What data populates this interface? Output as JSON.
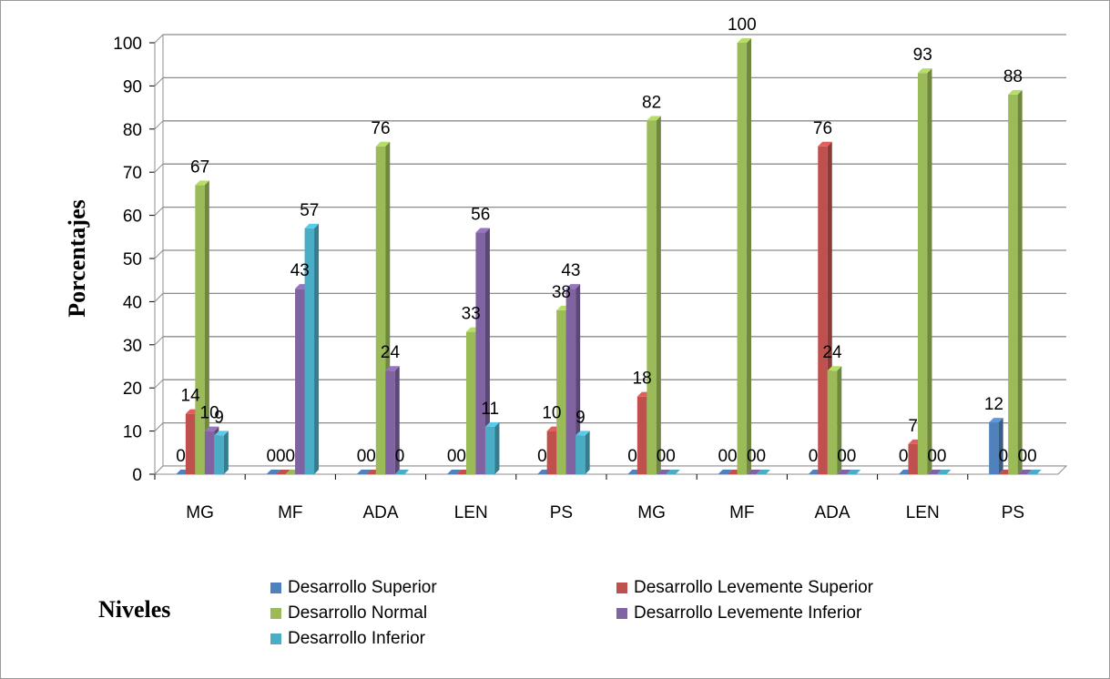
{
  "chart_data": {
    "type": "bar",
    "title": "",
    "xlabel": "Niveles",
    "ylabel": "Porcentajes",
    "ylim": [
      0,
      100
    ],
    "yticks": [
      0,
      10,
      20,
      30,
      40,
      50,
      60,
      70,
      80,
      90,
      100
    ],
    "grid": true,
    "legend_position": "bottom",
    "categories": [
      "MG",
      "MF",
      "ADA",
      "LEN",
      "PS",
      "MG",
      "MF",
      "ADA",
      "LEN",
      "PS"
    ],
    "series": [
      {
        "name": "Desarrollo Superior",
        "color": "#4f81bd",
        "values": [
          0,
          0,
          0,
          0,
          0,
          0,
          0,
          0,
          0,
          12
        ]
      },
      {
        "name": "Desarrollo Levemente Superior",
        "color": "#c0504d",
        "values": [
          14,
          0,
          0,
          0,
          10,
          18,
          0,
          76,
          7,
          0
        ]
      },
      {
        "name": "Desarrollo Normal",
        "color": "#9bbb59",
        "values": [
          67,
          0,
          76,
          33,
          38,
          82,
          100,
          24,
          93,
          88
        ]
      },
      {
        "name": "Desarrollo Levemente Inferior",
        "color": "#8064a2",
        "values": [
          10,
          43,
          24,
          56,
          43,
          0,
          0,
          0,
          0,
          0
        ]
      },
      {
        "name": "Desarrollo Inferior",
        "color": "#4bacc6",
        "values": [
          9,
          57,
          0,
          11,
          9,
          0,
          0,
          0,
          0,
          0
        ]
      }
    ]
  }
}
